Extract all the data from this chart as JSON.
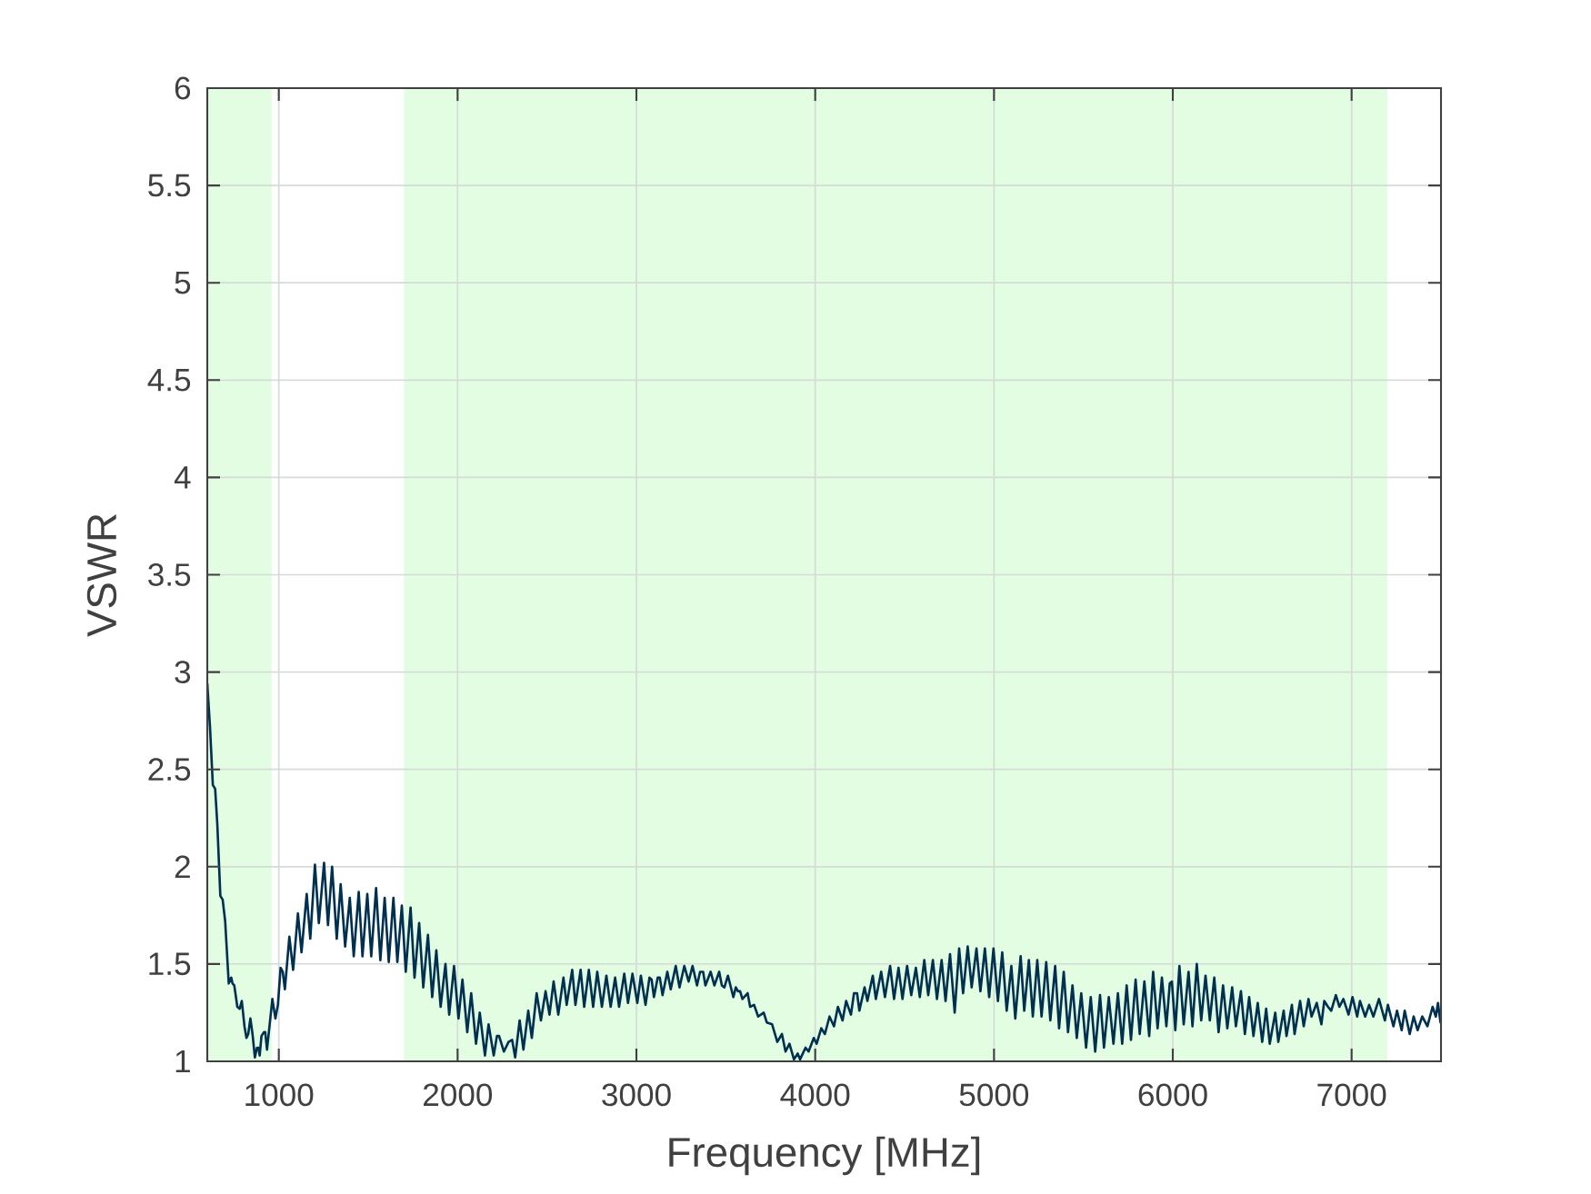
{
  "chart_data": {
    "type": "line",
    "xlabel": "Frequency [MHz]",
    "ylabel": "VSWR",
    "x": [
      600,
      615,
      631,
      644,
      656,
      673,
      686,
      700,
      720,
      734,
      741,
      751,
      768,
      781,
      793,
      808,
      819,
      829,
      841,
      853,
      866,
      878,
      886,
      893,
      903,
      917,
      924,
      934,
      949,
      964,
      981,
      995,
      1010,
      1022,
      1034,
      1059,
      1080,
      1107,
      1127,
      1156,
      1176,
      1202,
      1224,
      1253,
      1275,
      1298,
      1324,
      1346,
      1371,
      1397,
      1419,
      1447,
      1468,
      1495,
      1517,
      1544,
      1568,
      1592,
      1615,
      1641,
      1663,
      1688,
      1710,
      1737,
      1759,
      1785,
      1808,
      1834,
      1858,
      1881,
      1905,
      1932,
      1953,
      1980,
      2005,
      2027,
      2054,
      2076,
      2103,
      2124,
      2153,
      2173,
      2202,
      2220,
      2232,
      2259,
      2285,
      2305,
      2322,
      2347,
      2368,
      2395,
      2415,
      2442,
      2466,
      2492,
      2514,
      2537,
      2563,
      2592,
      2610,
      2641,
      2659,
      2688,
      2708,
      2734,
      2758,
      2781,
      2807,
      2832,
      2856,
      2881,
      2903,
      2932,
      2953,
      2978,
      3005,
      3025,
      3051,
      3073,
      3085,
      3098,
      3119,
      3131,
      3146,
      3173,
      3192,
      3220,
      3241,
      3268,
      3292,
      3314,
      3339,
      3356,
      3373,
      3386,
      3415,
      3436,
      3463,
      3478,
      3492,
      3512,
      3542,
      3556,
      3568,
      3580,
      3593,
      3622,
      3636,
      3658,
      3681,
      3712,
      3729,
      3759,
      3788,
      3814,
      3834,
      3856,
      3881,
      3902,
      3915,
      3946,
      3963,
      3992,
      4008,
      4034,
      4054,
      4080,
      4105,
      4127,
      4153,
      4173,
      4200,
      4217,
      4234,
      4247,
      4276,
      4292,
      4322,
      4339,
      4369,
      4390,
      4419,
      4441,
      4466,
      4488,
      4514,
      4537,
      4563,
      4585,
      4610,
      4632,
      4658,
      4681,
      4707,
      4729,
      4754,
      4780,
      4805,
      4827,
      4853,
      4875,
      4902,
      4924,
      4949,
      4973,
      4997,
      5022,
      5046,
      5071,
      5097,
      5119,
      5149,
      5169,
      5195,
      5217,
      5242,
      5266,
      5292,
      5315,
      5342,
      5364,
      5390,
      5414,
      5439,
      5463,
      5488,
      5515,
      5541,
      5566,
      5593,
      5615,
      5642,
      5668,
      5693,
      5717,
      5742,
      5766,
      5792,
      5815,
      5841,
      5868,
      5890,
      5915,
      5939,
      5964,
      5983,
      5995,
      6014,
      6037,
      6061,
      6088,
      6110,
      6134,
      6159,
      6183,
      6207,
      6232,
      6256,
      6281,
      6305,
      6332,
      6353,
      6381,
      6403,
      6427,
      6451,
      6475,
      6500,
      6522,
      6542,
      6573,
      6590,
      6620,
      6636,
      6666,
      6681,
      6712,
      6732,
      6759,
      6776,
      6805,
      6831,
      6847,
      6868,
      6886,
      6912,
      6932,
      6954,
      6983,
      7005,
      7031,
      7047,
      7076,
      7098,
      7122,
      7153,
      7186,
      7203,
      7234,
      7254,
      7280,
      7297,
      7325,
      7347,
      7369,
      7395,
      7424,
      7453,
      7471,
      7483,
      7497
    ],
    "series": [
      {
        "color": "#003050",
        "values": [
          2.94,
          2.72,
          2.42,
          2.4,
          2.22,
          1.85,
          1.83,
          1.72,
          1.4,
          1.43,
          1.4,
          1.39,
          1.28,
          1.27,
          1.31,
          1.18,
          1.12,
          1.14,
          1.22,
          1.14,
          1.02,
          1.07,
          1.07,
          1.03,
          1.13,
          1.15,
          1.15,
          1.06,
          1.19,
          1.32,
          1.22,
          1.29,
          1.48,
          1.46,
          1.37,
          1.64,
          1.47,
          1.76,
          1.56,
          1.86,
          1.63,
          2.01,
          1.71,
          2.02,
          1.7,
          2.0,
          1.63,
          1.91,
          1.59,
          1.84,
          1.54,
          1.87,
          1.54,
          1.86,
          1.54,
          1.89,
          1.52,
          1.84,
          1.51,
          1.84,
          1.51,
          1.8,
          1.46,
          1.79,
          1.43,
          1.71,
          1.38,
          1.65,
          1.33,
          1.57,
          1.28,
          1.5,
          1.24,
          1.49,
          1.22,
          1.42,
          1.15,
          1.35,
          1.09,
          1.25,
          1.03,
          1.19,
          1.03,
          1.13,
          1.13,
          1.05,
          1.1,
          1.11,
          1.02,
          1.21,
          1.06,
          1.26,
          1.12,
          1.35,
          1.21,
          1.36,
          1.24,
          1.41,
          1.24,
          1.43,
          1.29,
          1.47,
          1.29,
          1.47,
          1.28,
          1.47,
          1.28,
          1.46,
          1.28,
          1.44,
          1.28,
          1.43,
          1.28,
          1.45,
          1.3,
          1.45,
          1.3,
          1.44,
          1.29,
          1.43,
          1.42,
          1.33,
          1.43,
          1.43,
          1.34,
          1.46,
          1.37,
          1.49,
          1.38,
          1.49,
          1.41,
          1.49,
          1.39,
          1.46,
          1.46,
          1.39,
          1.46,
          1.39,
          1.46,
          1.39,
          1.38,
          1.44,
          1.33,
          1.38,
          1.36,
          1.36,
          1.32,
          1.35,
          1.28,
          1.29,
          1.23,
          1.25,
          1.2,
          1.19,
          1.1,
          1.14,
          1.05,
          1.09,
          1.01,
          1.04,
          1.01,
          1.07,
          1.05,
          1.12,
          1.09,
          1.17,
          1.14,
          1.23,
          1.18,
          1.28,
          1.21,
          1.31,
          1.24,
          1.35,
          1.35,
          1.26,
          1.38,
          1.31,
          1.44,
          1.32,
          1.46,
          1.33,
          1.49,
          1.32,
          1.48,
          1.32,
          1.49,
          1.34,
          1.48,
          1.33,
          1.52,
          1.34,
          1.52,
          1.32,
          1.52,
          1.31,
          1.55,
          1.25,
          1.58,
          1.35,
          1.59,
          1.38,
          1.58,
          1.36,
          1.58,
          1.33,
          1.58,
          1.31,
          1.56,
          1.26,
          1.49,
          1.22,
          1.54,
          1.26,
          1.52,
          1.23,
          1.52,
          1.23,
          1.51,
          1.21,
          1.49,
          1.17,
          1.46,
          1.15,
          1.39,
          1.12,
          1.35,
          1.07,
          1.33,
          1.05,
          1.34,
          1.07,
          1.33,
          1.09,
          1.35,
          1.09,
          1.39,
          1.11,
          1.42,
          1.14,
          1.41,
          1.13,
          1.46,
          1.17,
          1.43,
          1.18,
          1.4,
          1.41,
          1.16,
          1.49,
          1.19,
          1.46,
          1.18,
          1.5,
          1.21,
          1.44,
          1.21,
          1.43,
          1.15,
          1.39,
          1.17,
          1.38,
          1.18,
          1.36,
          1.14,
          1.33,
          1.13,
          1.3,
          1.1,
          1.27,
          1.09,
          1.25,
          1.1,
          1.26,
          1.13,
          1.29,
          1.14,
          1.31,
          1.18,
          1.32,
          1.23,
          1.3,
          1.19,
          1.31,
          1.28,
          1.26,
          1.34,
          1.28,
          1.32,
          1.24,
          1.33,
          1.23,
          1.31,
          1.23,
          1.29,
          1.23,
          1.32,
          1.21,
          1.29,
          1.18,
          1.26,
          1.16,
          1.26,
          1.14,
          1.23,
          1.16,
          1.23,
          1.18,
          1.28,
          1.23,
          1.3,
          1.2
        ]
      }
    ],
    "xlim": [
      600,
      7500
    ],
    "ylim": [
      1,
      6
    ],
    "xticks": [
      1000,
      2000,
      3000,
      4000,
      5000,
      6000,
      7000
    ],
    "yticks": [
      1,
      1.5,
      2,
      2.5,
      3,
      3.5,
      4,
      4.5,
      5,
      5.5,
      6
    ],
    "grid": true,
    "bands": [
      {
        "axis": "x",
        "from": 600,
        "to": 960,
        "color": "#e3fde3"
      },
      {
        "axis": "x",
        "from": 1700,
        "to": 7200,
        "color": "#e3fde3"
      }
    ]
  }
}
